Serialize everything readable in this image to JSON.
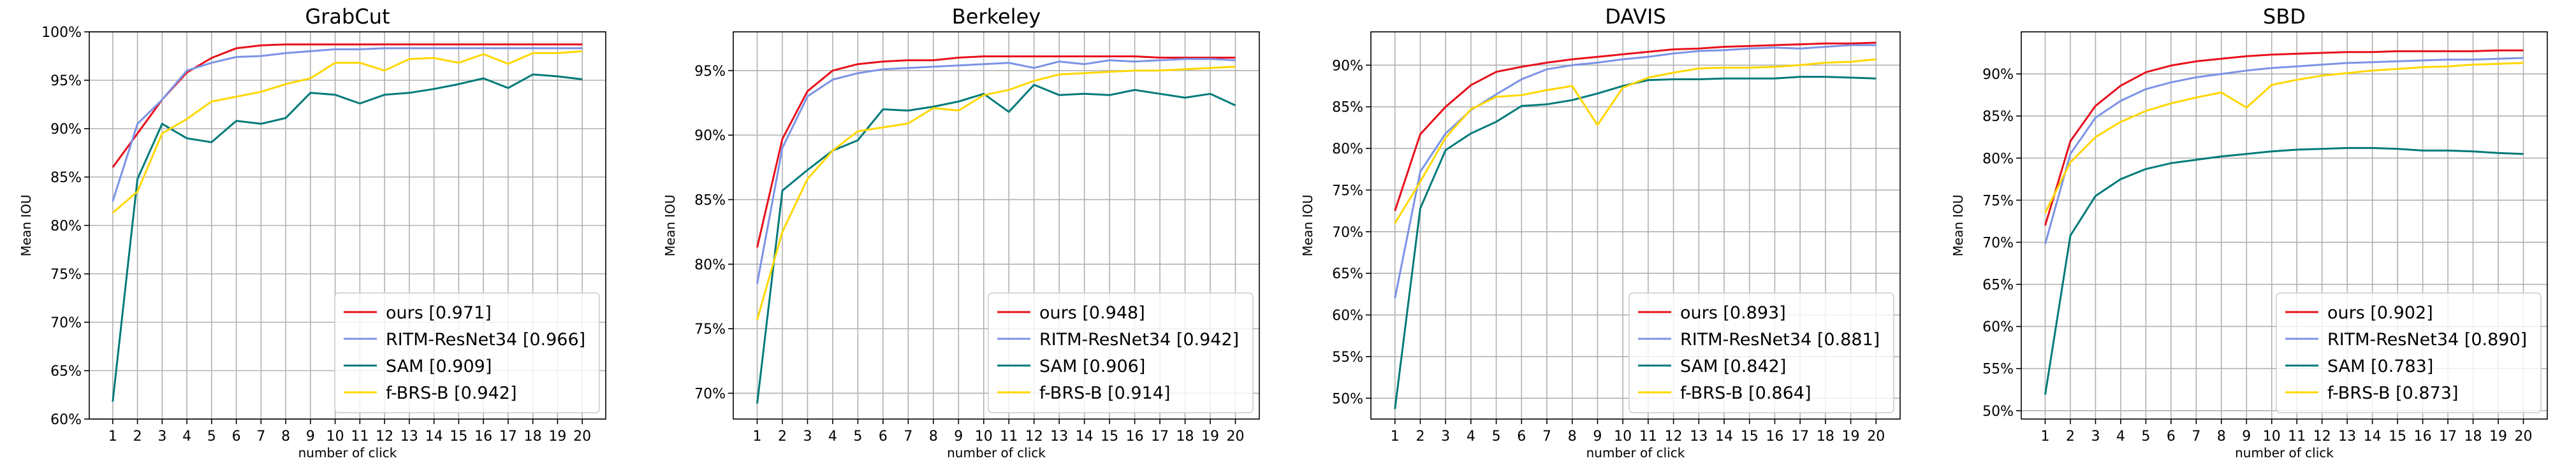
{
  "chart_data": [
    {
      "type": "line",
      "title": "GrabCut",
      "xlabel": "number of click",
      "ylabel": "Mean IOU",
      "x": [
        1,
        2,
        3,
        4,
        5,
        6,
        7,
        8,
        9,
        10,
        11,
        12,
        13,
        14,
        15,
        16,
        17,
        18,
        19,
        20
      ],
      "ylim": [
        0.6,
        1.0
      ],
      "yticks": [
        0.6,
        0.65,
        0.7,
        0.75,
        0.8,
        0.85,
        0.9,
        0.95,
        1.0
      ],
      "ytick_labels": [
        "60%",
        "65%",
        "70%",
        "75%",
        "80%",
        "85%",
        "90%",
        "95%",
        "100%"
      ],
      "grid": true,
      "legend_position": "lower-right",
      "series": [
        {
          "name": "ours [0.971]",
          "color": "#e8101c",
          "values": [
            0.86,
            0.895,
            0.93,
            0.958,
            0.973,
            0.983,
            0.986,
            0.987,
            0.987,
            0.987,
            0.987,
            0.987,
            0.987,
            0.987,
            0.987,
            0.987,
            0.987,
            0.987,
            0.987,
            0.987
          ]
        },
        {
          "name": "RITM-ResNet34 [0.966]",
          "color": "#7b93e6",
          "values": [
            0.825,
            0.905,
            0.93,
            0.96,
            0.968,
            0.974,
            0.975,
            0.978,
            0.98,
            0.982,
            0.982,
            0.983,
            0.983,
            0.983,
            0.983,
            0.983,
            0.983,
            0.983,
            0.983,
            0.983
          ]
        },
        {
          "name": "SAM [0.909]",
          "color": "#007a7a",
          "values": [
            0.618,
            0.848,
            0.905,
            0.89,
            0.886,
            0.908,
            0.905,
            0.911,
            0.937,
            0.935,
            0.926,
            0.935,
            0.937,
            0.941,
            0.946,
            0.952,
            0.942,
            0.956,
            0.954,
            0.951
          ]
        },
        {
          "name": "f-BRS-B [0.942]",
          "color": "#ffd700",
          "values": [
            0.813,
            0.835,
            0.895,
            0.91,
            0.928,
            0.933,
            0.938,
            0.946,
            0.952,
            0.968,
            0.968,
            0.96,
            0.972,
            0.973,
            0.968,
            0.977,
            0.967,
            0.978,
            0.978,
            0.98
          ]
        }
      ]
    },
    {
      "type": "line",
      "title": "Berkeley",
      "xlabel": "number of click",
      "ylabel": "Mean IOU",
      "x": [
        1,
        2,
        3,
        4,
        5,
        6,
        7,
        8,
        9,
        10,
        11,
        12,
        13,
        14,
        15,
        16,
        17,
        18,
        19,
        20
      ],
      "ylim": [
        0.68,
        0.98
      ],
      "yticks": [
        0.7,
        0.75,
        0.8,
        0.85,
        0.9,
        0.95
      ],
      "ytick_labels": [
        "70%",
        "75%",
        "80%",
        "85%",
        "90%",
        "95%"
      ],
      "grid": true,
      "legend_position": "lower-right",
      "series": [
        {
          "name": "ours [0.948]",
          "color": "#e8101c",
          "values": [
            0.813,
            0.897,
            0.934,
            0.95,
            0.955,
            0.957,
            0.958,
            0.958,
            0.96,
            0.961,
            0.961,
            0.961,
            0.961,
            0.961,
            0.961,
            0.961,
            0.96,
            0.96,
            0.96,
            0.96
          ]
        },
        {
          "name": "RITM-ResNet34 [0.942]",
          "color": "#7b93e6",
          "values": [
            0.785,
            0.89,
            0.93,
            0.943,
            0.948,
            0.951,
            0.952,
            0.953,
            0.954,
            0.955,
            0.956,
            0.952,
            0.957,
            0.955,
            0.958,
            0.957,
            0.958,
            0.959,
            0.959,
            0.958
          ]
        },
        {
          "name": "SAM [0.906]",
          "color": "#007a7a",
          "values": [
            0.692,
            0.857,
            0.873,
            0.888,
            0.896,
            0.92,
            0.919,
            0.922,
            0.926,
            0.932,
            0.918,
            0.939,
            0.931,
            0.932,
            0.931,
            0.935,
            0.932,
            0.929,
            0.932,
            0.923
          ]
        },
        {
          "name": "f-BRS-B [0.914]",
          "color": "#ffd700",
          "values": [
            0.757,
            0.825,
            0.866,
            0.888,
            0.903,
            0.906,
            0.909,
            0.921,
            0.919,
            0.931,
            0.935,
            0.942,
            0.947,
            0.948,
            0.949,
            0.95,
            0.95,
            0.951,
            0.952,
            0.953
          ]
        }
      ]
    },
    {
      "type": "line",
      "title": "DAVIS",
      "xlabel": "number of click",
      "ylabel": "Mean IOU",
      "x": [
        1,
        2,
        3,
        4,
        5,
        6,
        7,
        8,
        9,
        10,
        11,
        12,
        13,
        14,
        15,
        16,
        17,
        18,
        19,
        20
      ],
      "ylim": [
        0.475,
        0.94
      ],
      "yticks": [
        0.5,
        0.55,
        0.6,
        0.65,
        0.7,
        0.75,
        0.8,
        0.85,
        0.9
      ],
      "ytick_labels": [
        "50%",
        "55%",
        "60%",
        "65%",
        "70%",
        "75%",
        "80%",
        "85%",
        "90%"
      ],
      "grid": true,
      "legend_position": "lower-right",
      "series": [
        {
          "name": "ours [0.893]",
          "color": "#e8101c",
          "values": [
            0.725,
            0.817,
            0.85,
            0.876,
            0.892,
            0.898,
            0.903,
            0.907,
            0.91,
            0.913,
            0.916,
            0.919,
            0.92,
            0.922,
            0.923,
            0.924,
            0.925,
            0.926,
            0.926,
            0.927
          ]
        },
        {
          "name": "RITM-ResNet34 [0.881]",
          "color": "#7b93e6",
          "values": [
            0.62,
            0.772,
            0.818,
            0.846,
            0.865,
            0.883,
            0.895,
            0.9,
            0.903,
            0.907,
            0.91,
            0.914,
            0.917,
            0.918,
            0.92,
            0.921,
            0.92,
            0.922,
            0.924,
            0.924
          ]
        },
        {
          "name": "SAM [0.842]",
          "color": "#007a7a",
          "values": [
            0.487,
            0.728,
            0.798,
            0.818,
            0.832,
            0.851,
            0.853,
            0.858,
            0.866,
            0.875,
            0.882,
            0.883,
            0.883,
            0.884,
            0.884,
            0.884,
            0.886,
            0.886,
            0.885,
            0.884
          ]
        },
        {
          "name": "f-BRS-B [0.864]",
          "color": "#ffd700",
          "values": [
            0.71,
            0.76,
            0.813,
            0.847,
            0.862,
            0.864,
            0.87,
            0.875,
            0.828,
            0.873,
            0.885,
            0.891,
            0.896,
            0.897,
            0.897,
            0.898,
            0.9,
            0.903,
            0.904,
            0.907
          ]
        }
      ]
    },
    {
      "type": "line",
      "title": "SBD",
      "xlabel": "number of click",
      "ylabel": "Mean IOU",
      "x": [
        1,
        2,
        3,
        4,
        5,
        6,
        7,
        8,
        9,
        10,
        11,
        12,
        13,
        14,
        15,
        16,
        17,
        18,
        19,
        20
      ],
      "ylim": [
        0.49,
        0.95
      ],
      "yticks": [
        0.5,
        0.55,
        0.6,
        0.65,
        0.7,
        0.75,
        0.8,
        0.85,
        0.9
      ],
      "ytick_labels": [
        "50%",
        "55%",
        "60%",
        "65%",
        "70%",
        "75%",
        "80%",
        "85%",
        "90%"
      ],
      "grid": true,
      "legend_position": "lower-right",
      "series": [
        {
          "name": "ours [0.902]",
          "color": "#e8101c",
          "values": [
            0.72,
            0.82,
            0.862,
            0.886,
            0.902,
            0.91,
            0.915,
            0.918,
            0.921,
            0.923,
            0.924,
            0.925,
            0.926,
            0.926,
            0.927,
            0.927,
            0.927,
            0.927,
            0.928,
            0.928
          ]
        },
        {
          "name": "RITM-ResNet34 [0.890]",
          "color": "#7b93e6",
          "values": [
            0.698,
            0.805,
            0.848,
            0.868,
            0.882,
            0.89,
            0.896,
            0.9,
            0.904,
            0.907,
            0.909,
            0.911,
            0.913,
            0.914,
            0.915,
            0.916,
            0.917,
            0.917,
            0.918,
            0.919
          ]
        },
        {
          "name": "SAM [0.783]",
          "color": "#007a7a",
          "values": [
            0.519,
            0.708,
            0.755,
            0.775,
            0.787,
            0.794,
            0.798,
            0.802,
            0.805,
            0.808,
            0.81,
            0.811,
            0.812,
            0.812,
            0.811,
            0.809,
            0.809,
            0.808,
            0.806,
            0.805
          ]
        },
        {
          "name": "f-BRS-B [0.873]",
          "color": "#ffd700",
          "values": [
            0.735,
            0.795,
            0.825,
            0.843,
            0.856,
            0.865,
            0.872,
            0.878,
            0.86,
            0.887,
            0.893,
            0.898,
            0.901,
            0.904,
            0.906,
            0.908,
            0.909,
            0.911,
            0.912,
            0.913
          ]
        }
      ]
    }
  ]
}
